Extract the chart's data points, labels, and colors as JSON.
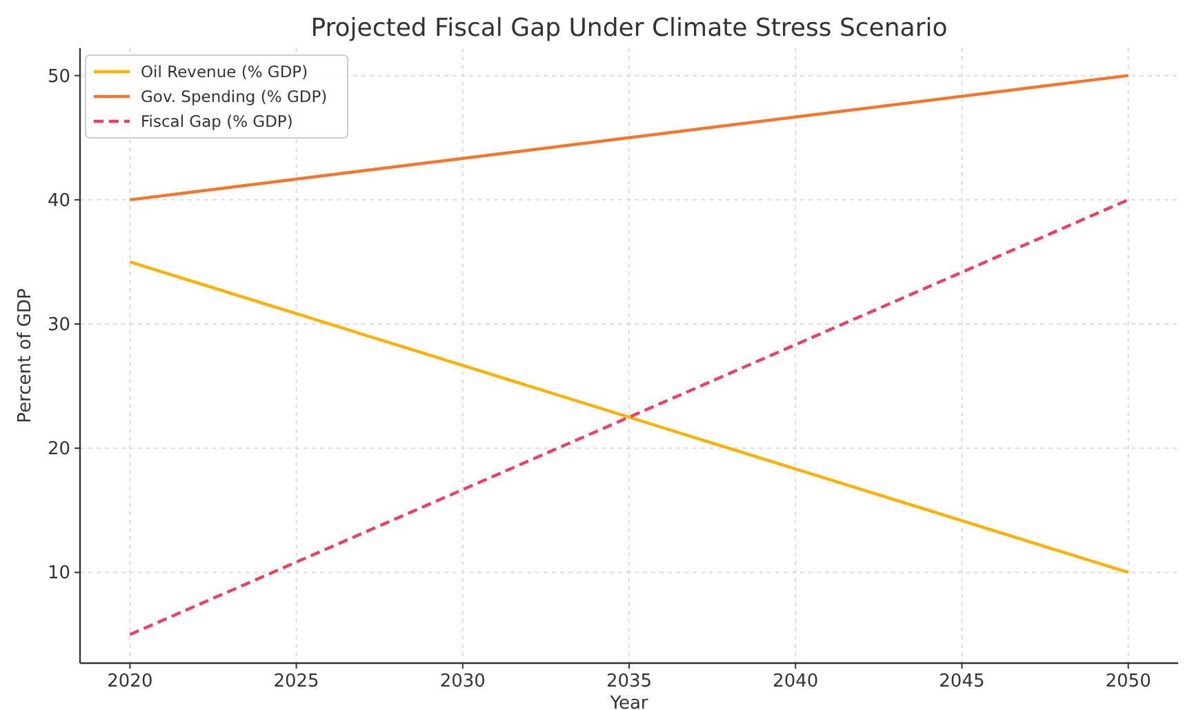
{
  "chart_data": {
    "type": "line",
    "title": "Projected Fiscal Gap Under Climate Stress Scenario",
    "xlabel": "Year",
    "ylabel": "Percent of GDP",
    "x": [
      2020,
      2050
    ],
    "series": [
      {
        "name": "Oil Revenue (% GDP)",
        "color": "#ffb000",
        "values": [
          35,
          10
        ]
      },
      {
        "name": "Gov. Spending (% GDP)",
        "color": "#f5762a",
        "values": [
          40,
          50
        ]
      },
      {
        "name": "Fiscal Gap (% GDP)",
        "color": "#ee3f5c",
        "values": [
          5,
          40
        ],
        "line_style": "dashed"
      }
    ],
    "xlim": [
      2018.5,
      2051.5
    ],
    "xticks": [
      2020,
      2025,
      2030,
      2035,
      2040,
      2045,
      2050
    ],
    "ylim": [
      2.7,
      52.2
    ],
    "yticks": [
      10,
      20,
      30,
      40,
      50
    ],
    "grid": true,
    "legend": "top left"
  }
}
